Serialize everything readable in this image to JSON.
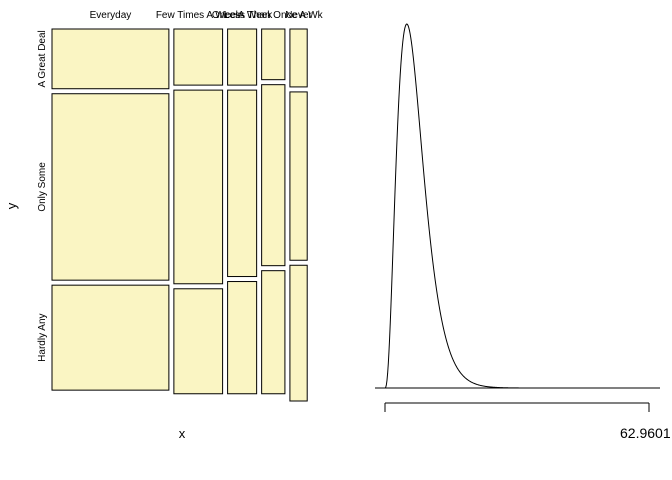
{
  "chart_data": [
    {
      "type": "mosaic",
      "xlabel": "x",
      "ylabel": "y",
      "x_categories": [
        "Everyday",
        "Few Times A Week",
        "Once A Week",
        "Less Than Once A Wk",
        "Never"
      ],
      "y_categories": [
        "A Great Deal",
        "Only Some",
        "Hardly Any"
      ],
      "x_proportions": [
        0.487,
        0.203,
        0.121,
        0.097,
        0.072
      ],
      "conditional_proportions": [
        [
          0.165,
          0.515,
          0.29
        ],
        [
          0.155,
          0.535,
          0.29
        ],
        [
          0.155,
          0.515,
          0.31
        ],
        [
          0.14,
          0.5,
          0.34
        ],
        [
          0.16,
          0.465,
          0.375
        ]
      ],
      "fill_color": "#FAF5C3",
      "stroke_color": "#000000"
    },
    {
      "type": "line",
      "title": "",
      "xlabel": "",
      "ylabel": "",
      "x_range": [
        0,
        62.9601
      ],
      "x_tick_label": "62.9601",
      "distribution": {
        "shape": 3.6,
        "rate": 0.5
      },
      "line_color": "#000000"
    }
  ]
}
